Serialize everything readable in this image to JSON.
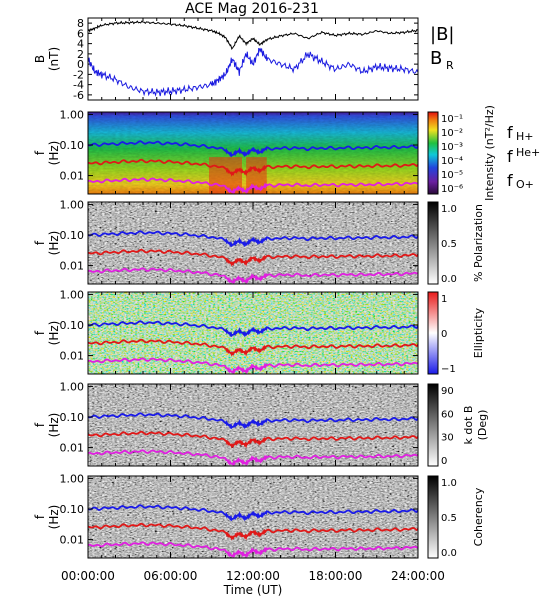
{
  "chart_data": {
    "type": "line",
    "title": "ACE Mag 2016-231",
    "xlabel": "Time (UT)",
    "x_ticks": [
      "00:00:00",
      "06:00:00",
      "12:00:00",
      "18:00:00",
      "24:00:00"
    ],
    "xlim_hours": [
      0,
      24
    ],
    "panels": [
      {
        "kind": "line",
        "ylabel_1": "B",
        "ylabel_2": "(nT)",
        "ylim": [
          -7,
          9
        ],
        "y_ticks": [
          "8",
          "6",
          "4",
          "2",
          "0",
          "-2",
          "-4",
          "-6"
        ],
        "series": [
          {
            "name": "|B|",
            "color": "#000000",
            "x": [
              0,
              0.5,
              1,
              2,
              3,
              4,
              5,
              6,
              7,
              8,
              9,
              9.5,
              10,
              10.5,
              11,
              11.5,
              12,
              12.5,
              13,
              14,
              15,
              16,
              17,
              18,
              19,
              20,
              21,
              22,
              23,
              24
            ],
            "y": [
              6.5,
              7.0,
              7.6,
              8.0,
              8.1,
              8.2,
              8.0,
              7.8,
              7.5,
              7.0,
              6.5,
              6.0,
              5.2,
              3.0,
              5.5,
              4.0,
              5.0,
              3.8,
              4.8,
              5.5,
              6.0,
              5.0,
              6.2,
              5.6,
              6.0,
              5.8,
              6.5,
              6.0,
              6.2,
              6.6
            ]
          },
          {
            "name": "B_R",
            "color": "#1a1ae0",
            "x": [
              0,
              0.5,
              1,
              2,
              3,
              4,
              5,
              6,
              7,
              8,
              9,
              9.5,
              10,
              10.5,
              11,
              11.5,
              12,
              12.5,
              13,
              14,
              15,
              16,
              17,
              18,
              19,
              20,
              21,
              22,
              23,
              24
            ],
            "y": [
              1.0,
              -1.5,
              -2.0,
              -3.0,
              -4.5,
              -5.3,
              -5.5,
              -5.3,
              -5.0,
              -4.5,
              -4.0,
              -3.0,
              -2.0,
              1.0,
              -1.5,
              2.0,
              0.0,
              3.0,
              1.0,
              0.0,
              -1.0,
              2.0,
              0.5,
              -1.0,
              0.0,
              -1.5,
              -0.5,
              -0.8,
              -1.0,
              -1.6
            ]
          }
        ],
        "legend": [
          {
            "main": "|B|",
            "sub": "",
            "color": "#000000"
          },
          {
            "main": "B",
            "sub": "R",
            "color": "#2020d0"
          }
        ]
      },
      {
        "kind": "spectrogram",
        "colormap": "rainbow",
        "ylabel_1": "f",
        "ylabel_2": "(Hz)",
        "colorbar_label": "Intensity (nT²/Hz)",
        "colorbar_ticks": [
          "10⁻¹",
          "10⁻²",
          "10⁻³",
          "10⁻⁴",
          "10⁻⁵",
          "10⁻⁶"
        ]
      },
      {
        "kind": "spectrogram",
        "colormap": "grey",
        "ylabel_1": "f",
        "ylabel_2": "(Hz)",
        "colorbar_label": "% Polarization",
        "colorbar_ticks": [
          "1.0",
          "0.5",
          "0.0"
        ]
      },
      {
        "kind": "spectrogram",
        "colormap": "bluered",
        "ylabel_1": "f",
        "ylabel_2": "(Hz)",
        "colorbar_label": "Ellipticity",
        "colorbar_ticks": [
          "1",
          "0",
          "−1"
        ]
      },
      {
        "kind": "spectrogram",
        "colormap": "grey",
        "ylabel_1": "f",
        "ylabel_2": "(Hz)",
        "colorbar_label": "k dot B (Deg)",
        "colorbar_label_1": "k dot B",
        "colorbar_label_2": "(Deg)",
        "colorbar_ticks": [
          "90",
          "60",
          "30",
          "0"
        ]
      },
      {
        "kind": "spectrogram",
        "colormap": "grey",
        "ylabel_1": "f",
        "ylabel_2": "(Hz)",
        "colorbar_label": "Coherency",
        "colorbar_ticks": [
          "1.0",
          "0.5",
          "0.0"
        ]
      }
    ],
    "freq_ticks": [
      "1.00",
      "0.10",
      "0.01"
    ],
    "freq_ylim_hz": [
      0.0025,
      1.2
    ],
    "gyrofrequency_lines": [
      {
        "name": "f_H+",
        "label": "f",
        "sub": "H+",
        "color": "#1a1ae8",
        "x": [
          0,
          1,
          2,
          3,
          4,
          5,
          6,
          7,
          8,
          9,
          10,
          10.5,
          11,
          11.5,
          12,
          12.5,
          13,
          14,
          15,
          16,
          17,
          18,
          19,
          20,
          21,
          22,
          23,
          24
        ],
        "y": [
          0.1,
          0.105,
          0.11,
          0.115,
          0.12,
          0.118,
          0.112,
          0.105,
          0.095,
          0.085,
          0.07,
          0.045,
          0.065,
          0.05,
          0.07,
          0.06,
          0.075,
          0.078,
          0.08,
          0.075,
          0.08,
          0.078,
          0.082,
          0.08,
          0.085,
          0.083,
          0.086,
          0.09
        ]
      },
      {
        "name": "f_He+",
        "label": "f",
        "sub": "He+",
        "color": "#e01818",
        "x": [
          0,
          1,
          2,
          3,
          4,
          5,
          6,
          7,
          8,
          9,
          10,
          10.5,
          11,
          11.5,
          12,
          12.5,
          13,
          14,
          15,
          16,
          17,
          18,
          19,
          20,
          21,
          22,
          23,
          24
        ],
        "y": [
          0.025,
          0.026,
          0.0275,
          0.029,
          0.03,
          0.0295,
          0.028,
          0.026,
          0.024,
          0.021,
          0.0175,
          0.011,
          0.016,
          0.0125,
          0.0175,
          0.015,
          0.019,
          0.0195,
          0.02,
          0.019,
          0.02,
          0.0195,
          0.0205,
          0.02,
          0.021,
          0.0208,
          0.0215,
          0.0225
        ]
      },
      {
        "name": "f_O+",
        "label": "f",
        "sub": "O+",
        "color": "#e020e0",
        "x": [
          0,
          1,
          2,
          3,
          4,
          5,
          6,
          7,
          8,
          9,
          10,
          10.5,
          11,
          11.5,
          12,
          12.5,
          13,
          14,
          15,
          16,
          17,
          18,
          19,
          20,
          21,
          22,
          23,
          24
        ],
        "y": [
          0.0062,
          0.0066,
          0.0069,
          0.0072,
          0.0075,
          0.0074,
          0.007,
          0.0065,
          0.006,
          0.0053,
          0.0044,
          0.0028,
          0.004,
          0.0031,
          0.0044,
          0.0038,
          0.0047,
          0.0049,
          0.005,
          0.0047,
          0.005,
          0.0049,
          0.0051,
          0.005,
          0.0052,
          0.0052,
          0.0054,
          0.0056
        ]
      }
    ]
  }
}
